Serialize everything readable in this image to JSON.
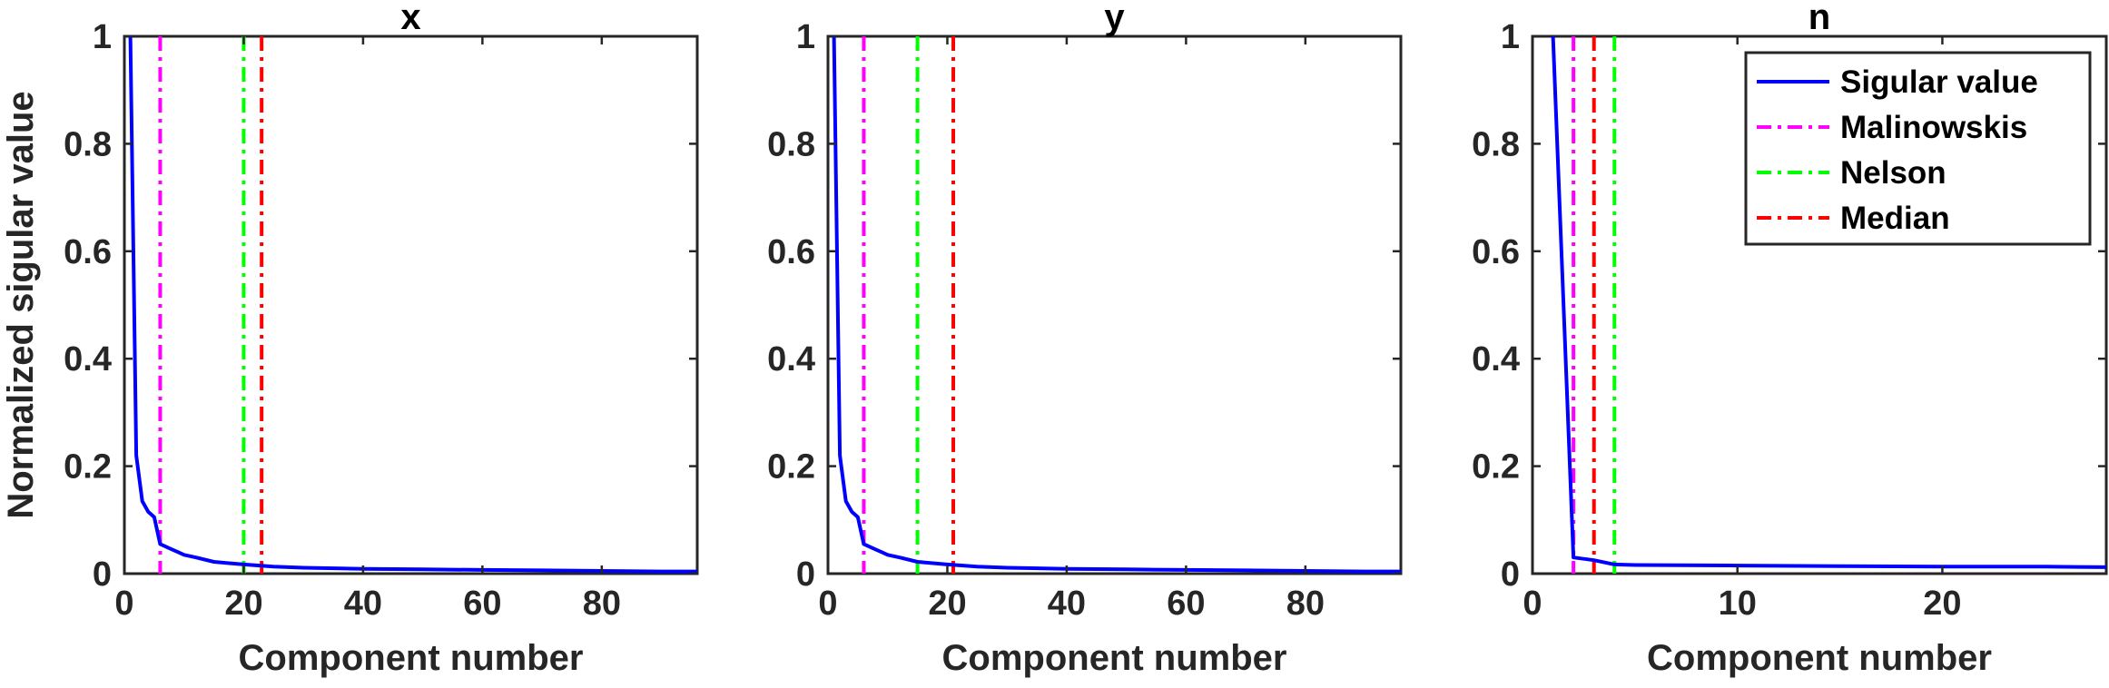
{
  "chart_data": [
    {
      "type": "line",
      "title": "x",
      "xlabel": "Component number",
      "ylabel": "Normalized sigular value",
      "xlim": [
        0,
        96
      ],
      "ylim": [
        0,
        1
      ],
      "xticks": [
        0,
        20,
        40,
        60,
        80
      ],
      "yticks": [
        0,
        0.2,
        0.4,
        0.6,
        0.8,
        1
      ],
      "series": [
        {
          "name": "Sigular value",
          "style": "solid",
          "color": "#0000ff",
          "x": [
            1,
            2,
            3,
            4,
            5,
            6,
            7,
            8,
            9,
            10,
            12,
            15,
            20,
            25,
            30,
            40,
            50,
            60,
            70,
            80,
            90,
            96
          ],
          "y": [
            1.0,
            0.22,
            0.135,
            0.115,
            0.105,
            0.055,
            0.05,
            0.045,
            0.04,
            0.035,
            0.03,
            0.022,
            0.017,
            0.013,
            0.011,
            0.009,
            0.008,
            0.007,
            0.006,
            0.005,
            0.004,
            0.004
          ]
        }
      ],
      "vlines": [
        {
          "name": "Malinowskis",
          "x": 6,
          "color": "#ff00ff",
          "style": "dashdot"
        },
        {
          "name": "Nelson",
          "x": 20,
          "color": "#00ff00",
          "style": "dashdot"
        },
        {
          "name": "Median",
          "x": 23,
          "color": "#ff0000",
          "style": "dashdot"
        }
      ]
    },
    {
      "type": "line",
      "title": "y",
      "xlabel": "Component number",
      "ylabel": "",
      "xlim": [
        0,
        96
      ],
      "ylim": [
        0,
        1
      ],
      "xticks": [
        0,
        20,
        40,
        60,
        80
      ],
      "yticks": [
        0,
        0.2,
        0.4,
        0.6,
        0.8,
        1
      ],
      "series": [
        {
          "name": "Sigular value",
          "style": "solid",
          "color": "#0000ff",
          "x": [
            1,
            2,
            3,
            4,
            5,
            6,
            7,
            8,
            9,
            10,
            12,
            15,
            20,
            25,
            30,
            40,
            50,
            60,
            70,
            80,
            90,
            96
          ],
          "y": [
            1.0,
            0.22,
            0.135,
            0.115,
            0.105,
            0.055,
            0.05,
            0.045,
            0.04,
            0.035,
            0.03,
            0.022,
            0.017,
            0.013,
            0.011,
            0.009,
            0.008,
            0.007,
            0.006,
            0.005,
            0.004,
            0.004
          ]
        }
      ],
      "vlines": [
        {
          "name": "Malinowskis",
          "x": 6,
          "color": "#ff00ff",
          "style": "dashdot"
        },
        {
          "name": "Nelson",
          "x": 15,
          "color": "#00ff00",
          "style": "dashdot"
        },
        {
          "name": "Median",
          "x": 21,
          "color": "#ff0000",
          "style": "dashdot"
        }
      ]
    },
    {
      "type": "line",
      "title": "n",
      "xlabel": "Component number",
      "ylabel": "",
      "xlim": [
        0,
        28
      ],
      "ylim": [
        0,
        1
      ],
      "xticks": [
        0,
        10,
        20
      ],
      "yticks": [
        0,
        0.2,
        0.4,
        0.6,
        0.8,
        1
      ],
      "legend": "top-right",
      "series": [
        {
          "name": "Sigular value",
          "style": "solid",
          "color": "#0000ff",
          "x": [
            1,
            2,
            3,
            4,
            5,
            10,
            15,
            20,
            25,
            28
          ],
          "y": [
            1.0,
            0.03,
            0.025,
            0.017,
            0.016,
            0.015,
            0.014,
            0.013,
            0.013,
            0.012
          ]
        }
      ],
      "vlines": [
        {
          "name": "Malinowskis",
          "x": 2,
          "color": "#ff00ff",
          "style": "dashdot"
        },
        {
          "name": "Median",
          "x": 3,
          "color": "#ff0000",
          "style": "dashdot"
        },
        {
          "name": "Nelson",
          "x": 4,
          "color": "#00ff00",
          "style": "dashdot"
        }
      ]
    }
  ],
  "legend": {
    "entries": [
      {
        "label": "Sigular value",
        "color": "#0000ff",
        "style": "solid"
      },
      {
        "label": "Malinowskis",
        "color": "#ff00ff",
        "style": "dashdot"
      },
      {
        "label": "Nelson",
        "color": "#00ff00",
        "style": "dashdot"
      },
      {
        "label": "Median",
        "color": "#ff0000",
        "style": "dashdot"
      }
    ]
  }
}
